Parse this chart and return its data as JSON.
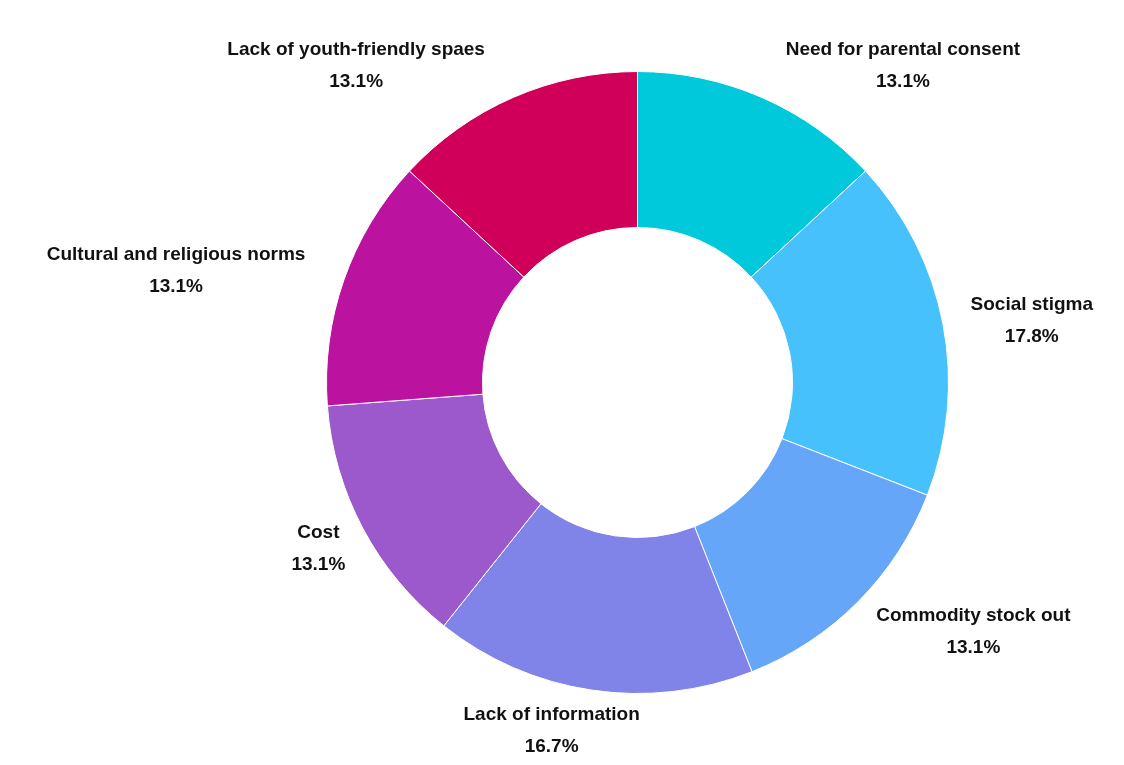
{
  "chart_data": {
    "type": "donut",
    "categories": [
      "Need for parental consent",
      "Social stigma",
      "Commodity stock out",
      "Lack of information",
      "Cost",
      "Cultural and religious norms",
      "Lack of youth-friendly spaes"
    ],
    "values": [
      13.1,
      17.8,
      13.1,
      16.7,
      13.1,
      13.1,
      13.1
    ],
    "value_labels": [
      "13.1%",
      "17.8%",
      "13.1%",
      "16.7%",
      "13.1%",
      "13.1%",
      "13.1%"
    ],
    "colors": [
      "#00c9db",
      "#47c1fb",
      "#66a6f8",
      "#8083e8",
      "#9b59cc",
      "#bb12a0",
      "#d0005a"
    ]
  }
}
